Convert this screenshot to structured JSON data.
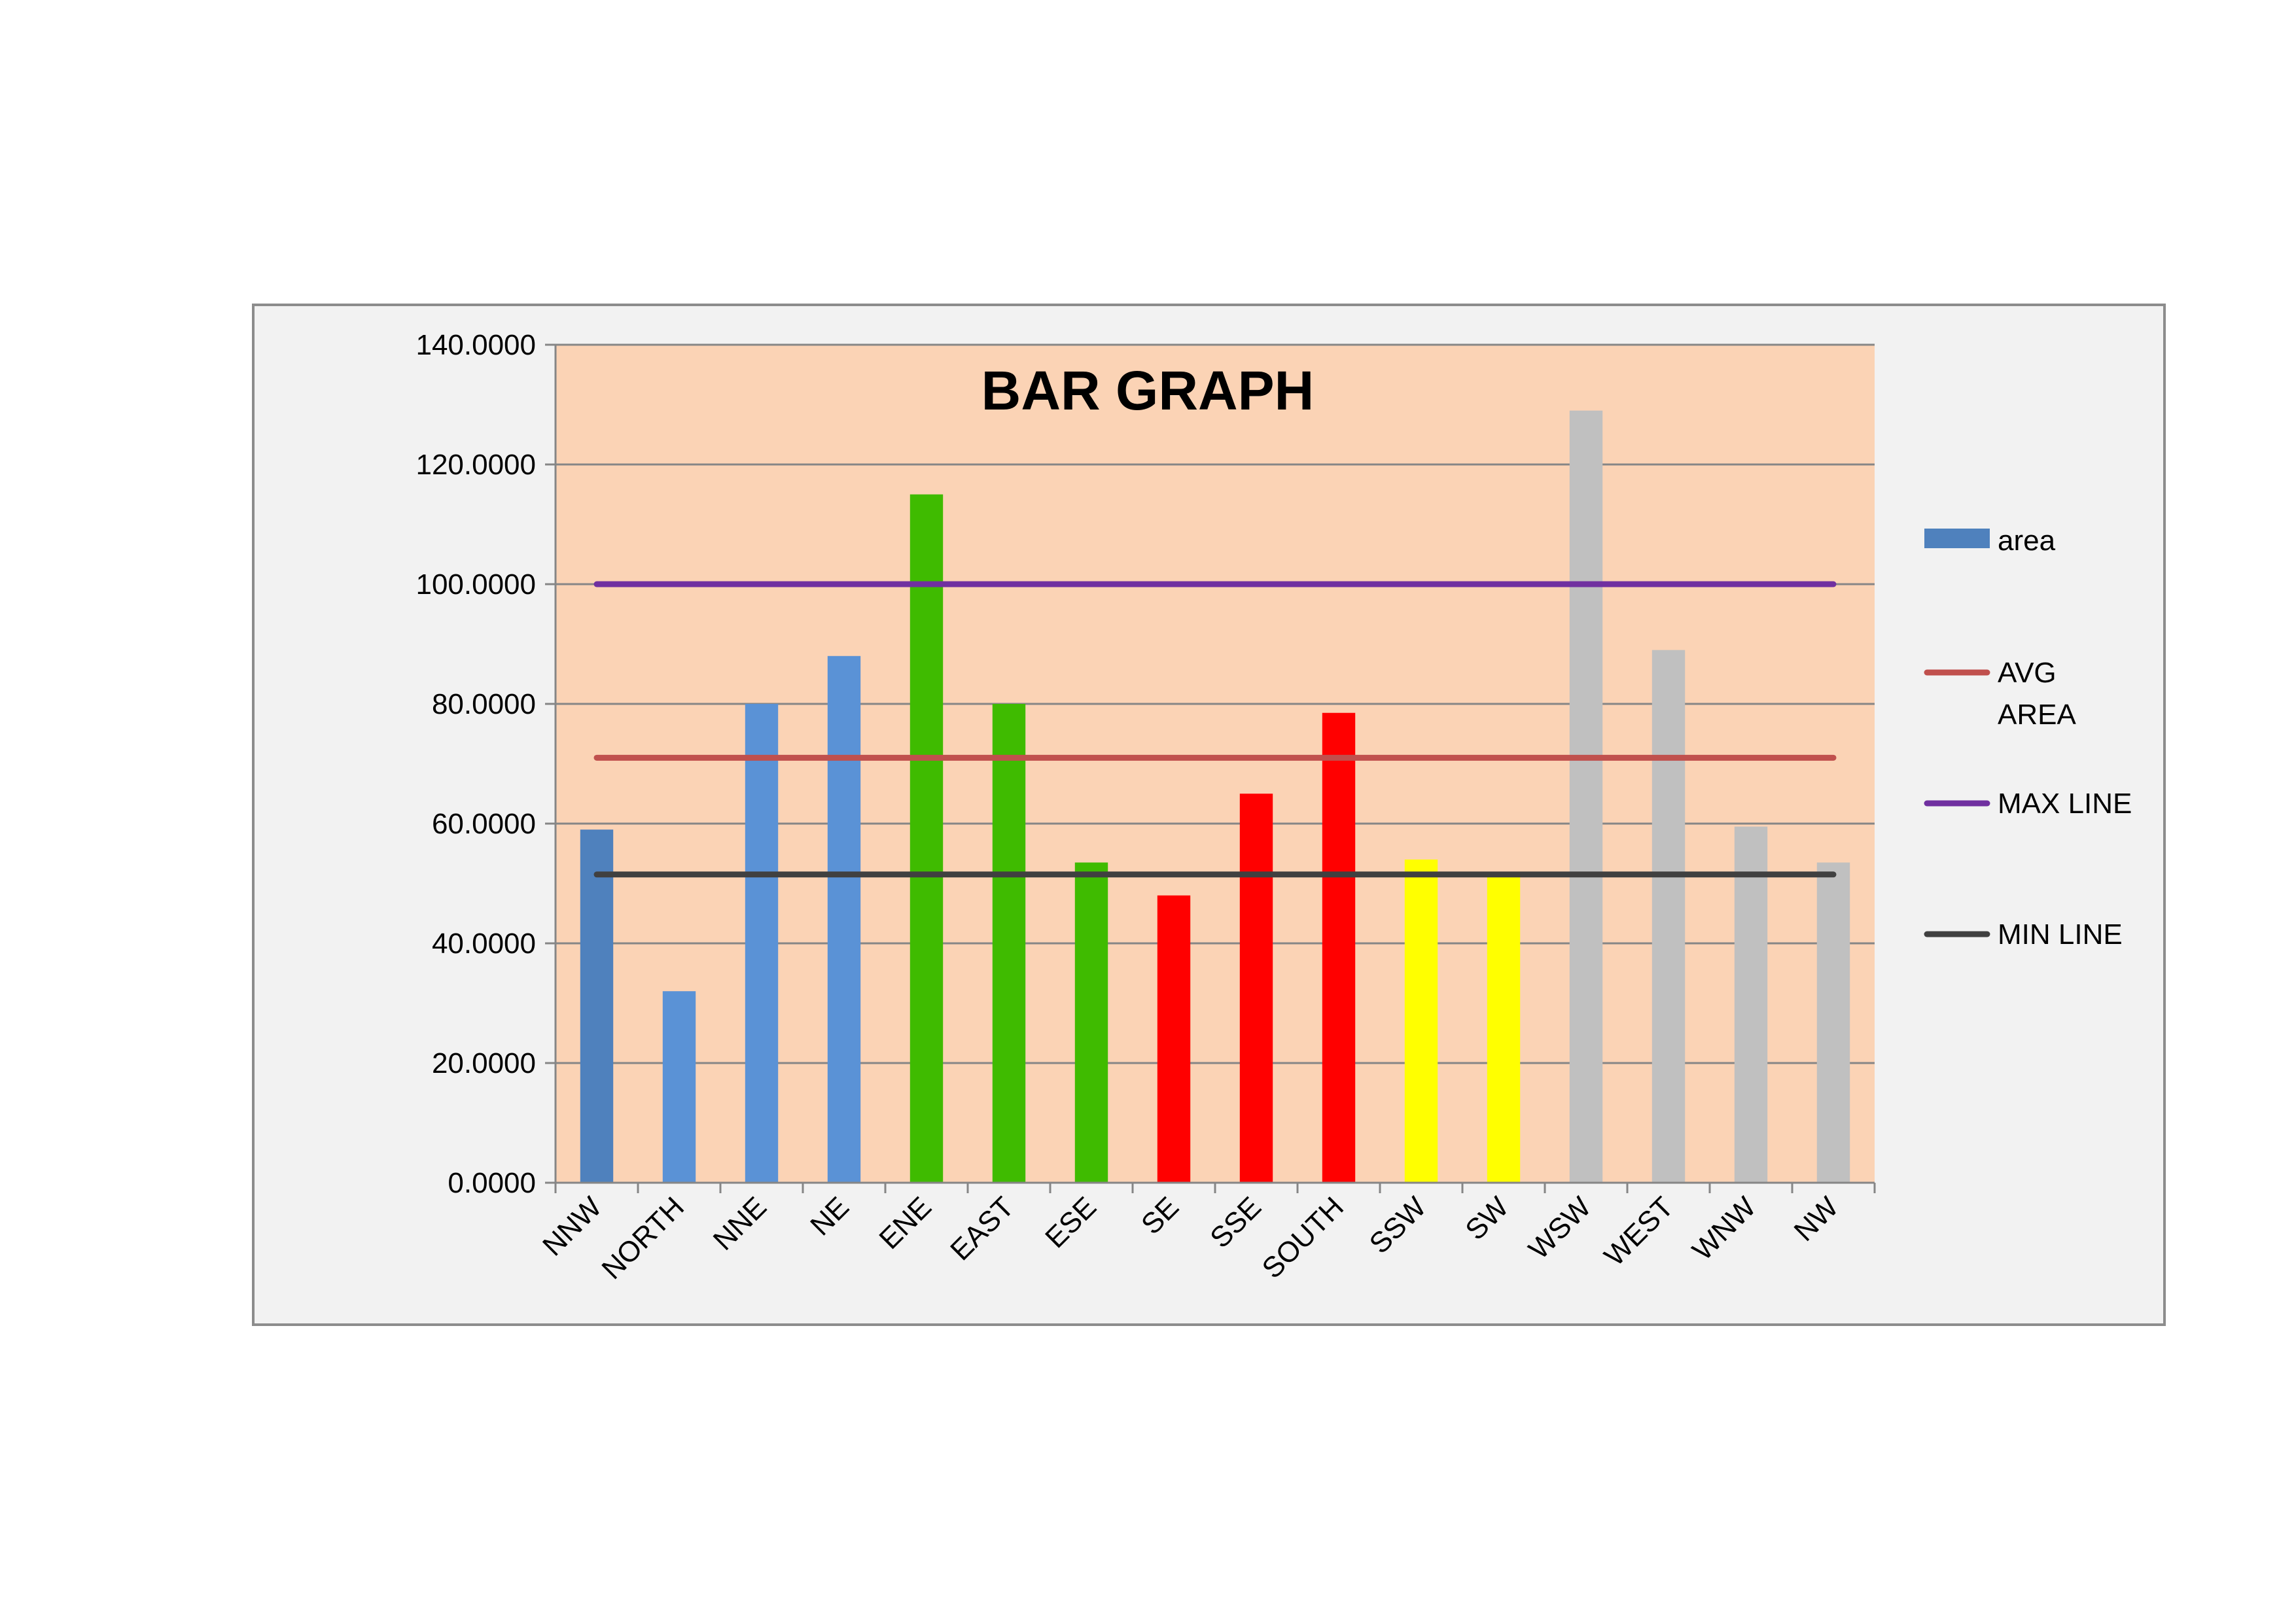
{
  "chart_data": {
    "type": "bar",
    "title": "BAR GRAPH",
    "xlabel": "",
    "ylabel": "",
    "ylim": [
      0,
      140
    ],
    "y_ticks": [
      "0.0000",
      "20.0000",
      "40.0000",
      "60.0000",
      "80.0000",
      "100.0000",
      "120.0000",
      "140.0000"
    ],
    "y_tick_values": [
      0,
      20,
      40,
      60,
      80,
      100,
      120,
      140
    ],
    "grid": true,
    "legend_position": "right",
    "plot_background": "#fbd3b5",
    "categories": [
      "NNW",
      "NORTH",
      "NNE",
      "NE",
      "ENE",
      "EAST",
      "ESE",
      "SE",
      "SSE",
      "SOUTH",
      "SSW",
      "SW",
      "WSW",
      "WEST",
      "WNW",
      "NW"
    ],
    "series": [
      {
        "name": "area",
        "values": [
          59,
          32,
          80,
          88,
          115,
          80,
          53.5,
          48,
          65,
          78.5,
          54,
          51.5,
          129,
          89,
          59.5,
          53.5
        ],
        "colors": [
          "#4f81bd",
          "#5a92d6",
          "#5a92d6",
          "#5a92d6",
          "#3fbb00",
          "#3fbb00",
          "#3fbb00",
          "#ff0000",
          "#ff0000",
          "#ff0000",
          "#ffff00",
          "#ffff00",
          "#c0c0c0",
          "#c0c0c0",
          "#c0c0c0",
          "#c0c0c0"
        ],
        "legend_color": "#4f81bd"
      },
      {
        "name": "AVG AREA",
        "type": "line",
        "value": 71,
        "color": "#c0504d"
      },
      {
        "name": "MAX LINE",
        "type": "line",
        "value": 100,
        "color": "#7030a0"
      },
      {
        "name": "MIN LINE",
        "type": "line",
        "value": 51.5,
        "color": "#404040"
      }
    ],
    "legend": [
      {
        "lines": [
          "area"
        ],
        "kind": "box",
        "color": "#4f81bd"
      },
      {
        "lines": [
          "AVG",
          "AREA"
        ],
        "kind": "line",
        "color": "#c0504d"
      },
      {
        "lines": [
          "MAX LINE"
        ],
        "kind": "line",
        "color": "#7030a0"
      },
      {
        "lines": [
          "MIN LINE"
        ],
        "kind": "line",
        "color": "#404040"
      }
    ]
  }
}
